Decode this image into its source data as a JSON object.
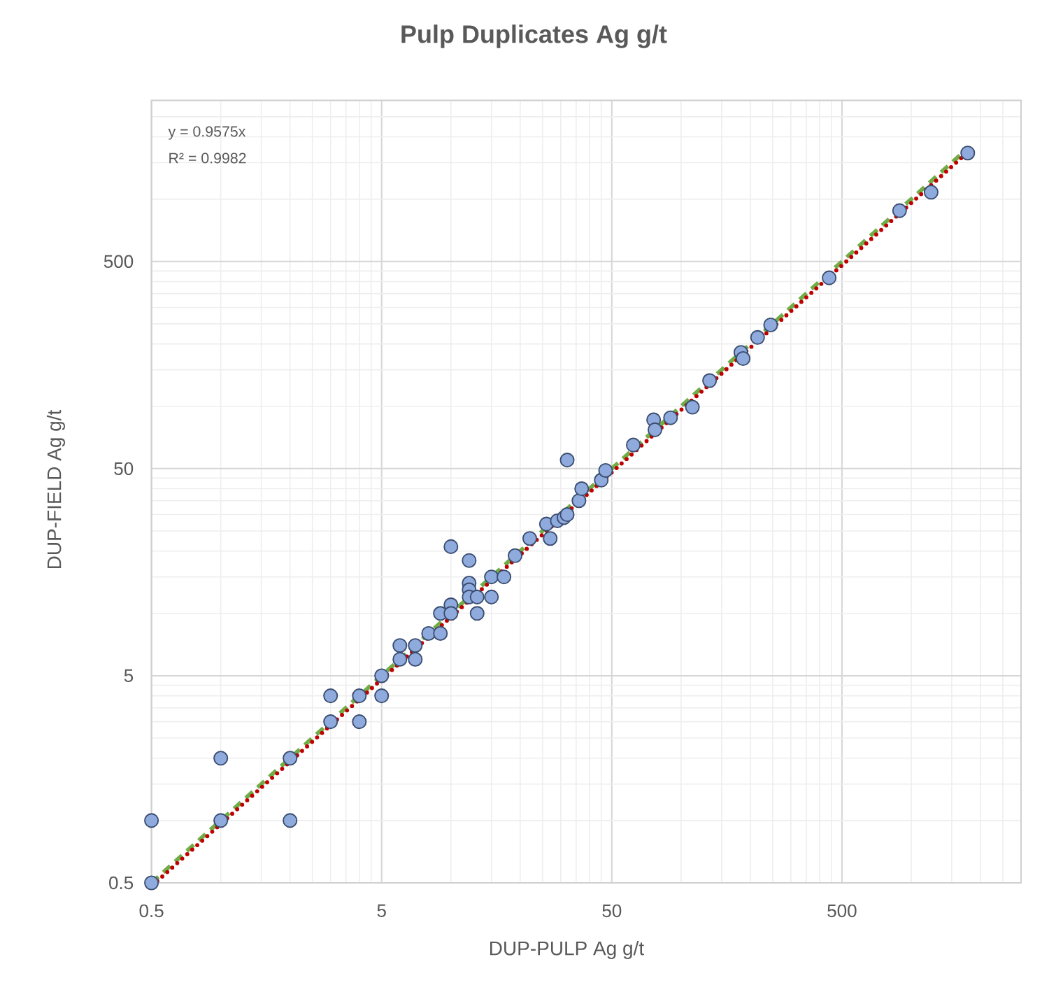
{
  "chart_data": {
    "type": "scatter",
    "title": "Pulp Duplicates Ag g/t",
    "xlabel": "DUP-PULP Ag g/t",
    "ylabel": "DUP-FIELD Ag g/t",
    "annotations": [
      "y = 0.9575x",
      "R² = 0.9982"
    ],
    "log": "xy",
    "xlim": [
      0.5,
      3000
    ],
    "ylim": [
      0.5,
      3000
    ],
    "xticks": [
      0.5,
      5,
      50,
      500
    ],
    "yticks": [
      0.5,
      5,
      50,
      500
    ],
    "grid": true,
    "marker": "circle",
    "series": [
      {
        "color": "#8faadc",
        "x": [
          0.5,
          0.5,
          1,
          1,
          2,
          2,
          3,
          3,
          4,
          4,
          5,
          5,
          6,
          6,
          7,
          7,
          8,
          9,
          9,
          10,
          10,
          10,
          12,
          12,
          12,
          12,
          13,
          13,
          15,
          15,
          17,
          19,
          22,
          26,
          27,
          29,
          31,
          32,
          36,
          37,
          45,
          47,
          32,
          62,
          76,
          77,
          90,
          112,
          133,
          182,
          186,
          215,
          245,
          440,
          890,
          1220,
          1760
        ],
        "values": [
          0.5,
          1,
          1,
          2,
          2,
          1,
          3,
          4,
          4,
          3,
          5,
          4,
          7,
          6,
          7,
          6,
          8,
          8,
          10,
          11,
          10,
          21,
          18,
          14,
          13,
          12,
          12,
          10,
          12,
          15,
          15,
          19,
          23,
          27,
          23,
          28,
          29,
          30,
          35,
          40,
          44,
          49,
          55,
          65,
          86,
          77,
          88,
          99,
          133,
          182,
          170,
          215,
          247,
          417,
          880,
          1080,
          1670
        ]
      },
      {
        "type": "line",
        "color": "#70ad47",
        "line_style": "dashed",
        "marker": "none",
        "x": [
          0.5,
          1760
        ],
        "values": [
          0.5,
          1760
        ]
      },
      {
        "type": "line",
        "color": "#c00000",
        "line_style": "dotted",
        "marker": "none",
        "x": [
          0.53,
          1760
        ],
        "values": [
          0.51,
          1685
        ]
      }
    ]
  }
}
